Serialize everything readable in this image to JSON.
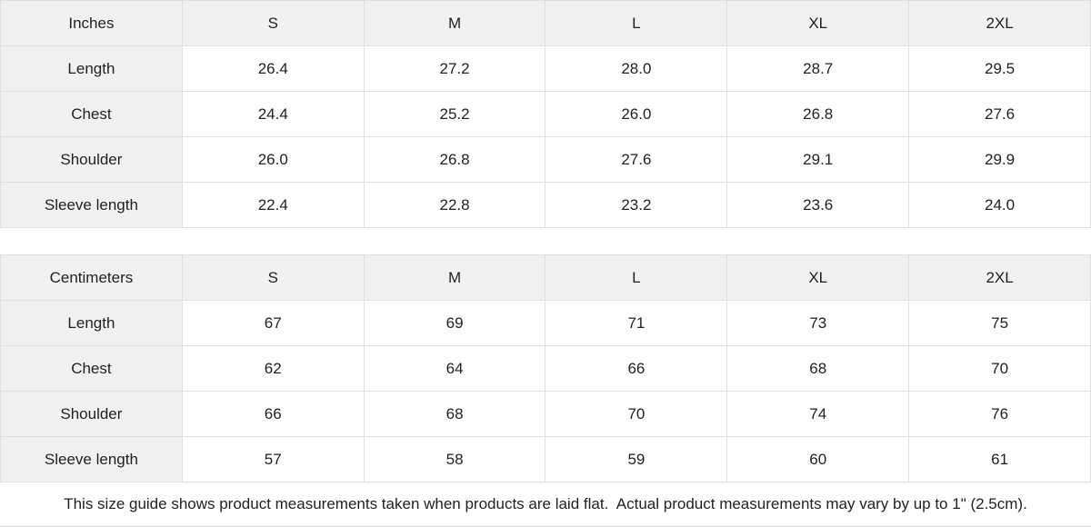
{
  "colors": {
    "header_bg": "#f1f1f1",
    "label_bg": "#f1f1f1",
    "cell_bg": "#ffffff",
    "border": "#e0e0e0",
    "text": "#222222"
  },
  "inches": {
    "unit_label": "Inches",
    "sizes": [
      "S",
      "M",
      "L",
      "XL",
      "2XL"
    ],
    "rows": [
      {
        "label": "Length",
        "values": [
          "26.4",
          "27.2",
          "28.0",
          "28.7",
          "29.5"
        ]
      },
      {
        "label": "Chest",
        "values": [
          "24.4",
          "25.2",
          "26.0",
          "26.8",
          "27.6"
        ]
      },
      {
        "label": "Shoulder",
        "values": [
          "26.0",
          "26.8",
          "27.6",
          "29.1",
          "29.9"
        ]
      },
      {
        "label": "Sleeve length",
        "values": [
          "22.4",
          "22.8",
          "23.2",
          "23.6",
          "24.0"
        ]
      }
    ]
  },
  "centimeters": {
    "unit_label": "Centimeters",
    "sizes": [
      "S",
      "M",
      "L",
      "XL",
      "2XL"
    ],
    "rows": [
      {
        "label": "Length",
        "values": [
          "67",
          "69",
          "71",
          "73",
          "75"
        ]
      },
      {
        "label": "Chest",
        "values": [
          "62",
          "64",
          "66",
          "68",
          "70"
        ]
      },
      {
        "label": "Shoulder",
        "values": [
          "66",
          "68",
          "70",
          "74",
          "76"
        ]
      },
      {
        "label": "Sleeve length",
        "values": [
          "57",
          "58",
          "59",
          "60",
          "61"
        ]
      }
    ]
  },
  "footer": {
    "note": "This size guide shows product measurements taken when products are laid flat.  Actual product measurements may vary by up to 1\" (2.5cm)."
  }
}
